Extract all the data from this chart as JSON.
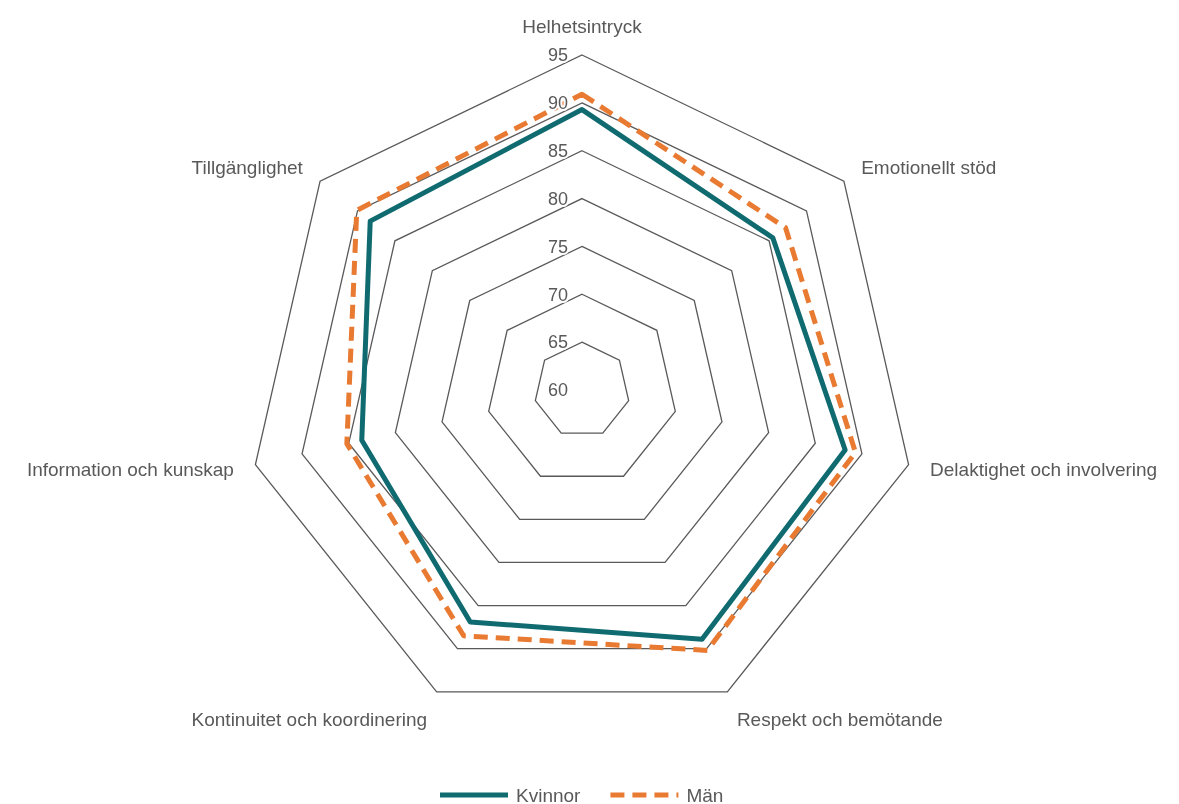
{
  "chart_data": {
    "type": "radar",
    "categories": [
      "Helhetsintryck",
      "Emotionellt stöd",
      "Delaktighet och involvering",
      "Respekt och bemötande",
      "Kontinuitet och koordinering",
      "Information och kunskap",
      "Tillgänglighet"
    ],
    "series": [
      {
        "name": "Kvinnor",
        "color": "#0f6b70",
        "values": [
          89.3,
          85.5,
          88.2,
          88.9,
          86.9,
          83.6,
          88.3
        ],
        "line_style": "solid"
      },
      {
        "name": "Män",
        "color": "#e97a32",
        "values": [
          90.9,
          87.2,
          89.3,
          90.2,
          88.5,
          85.2,
          90.1
        ],
        "line_style": "dashed"
      }
    ],
    "ylim": [
      60,
      95
    ],
    "yticks": [
      60,
      65,
      70,
      75,
      80,
      85,
      90,
      95
    ],
    "grid": true,
    "legend": "bottom",
    "marker": "none"
  }
}
